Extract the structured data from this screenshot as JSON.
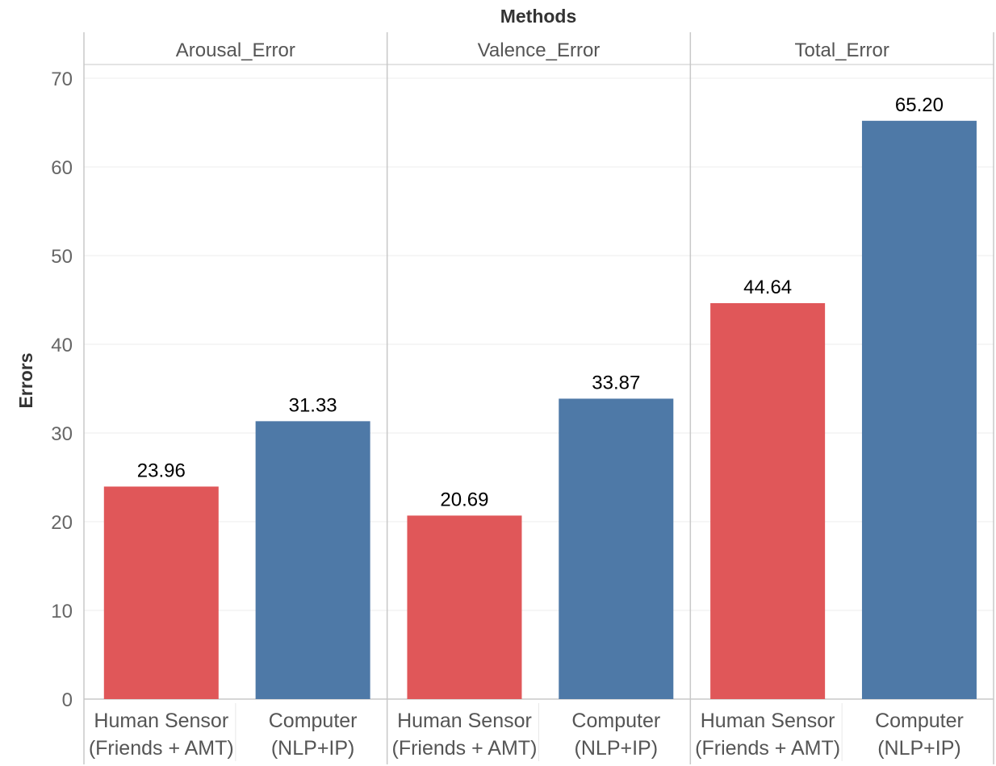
{
  "chart_data": {
    "type": "bar",
    "title": "Methods",
    "ylabel": "Errors",
    "ylim": [
      0,
      70
    ],
    "yticks": [
      0,
      10,
      20,
      30,
      40,
      50,
      60,
      70
    ],
    "grid": true,
    "facets": [
      "Arousal_Error",
      "Valence_Error",
      "Total_Error"
    ],
    "categories": [
      {
        "line1": "Human Sensor",
        "line2": "(Friends + AMT)",
        "color": "#e05759"
      },
      {
        "line1": "Computer",
        "line2": "(NLP+IP)",
        "color": "#4e79a7"
      }
    ],
    "series": [
      {
        "facet": "Arousal_Error",
        "values": [
          23.96,
          31.33
        ],
        "labels": [
          "23.96",
          "31.33"
        ]
      },
      {
        "facet": "Valence_Error",
        "values": [
          20.69,
          33.87
        ],
        "labels": [
          "20.69",
          "33.87"
        ]
      },
      {
        "facet": "Total_Error",
        "values": [
          44.64,
          65.2
        ],
        "labels": [
          "44.64",
          "65.20"
        ]
      }
    ]
  }
}
